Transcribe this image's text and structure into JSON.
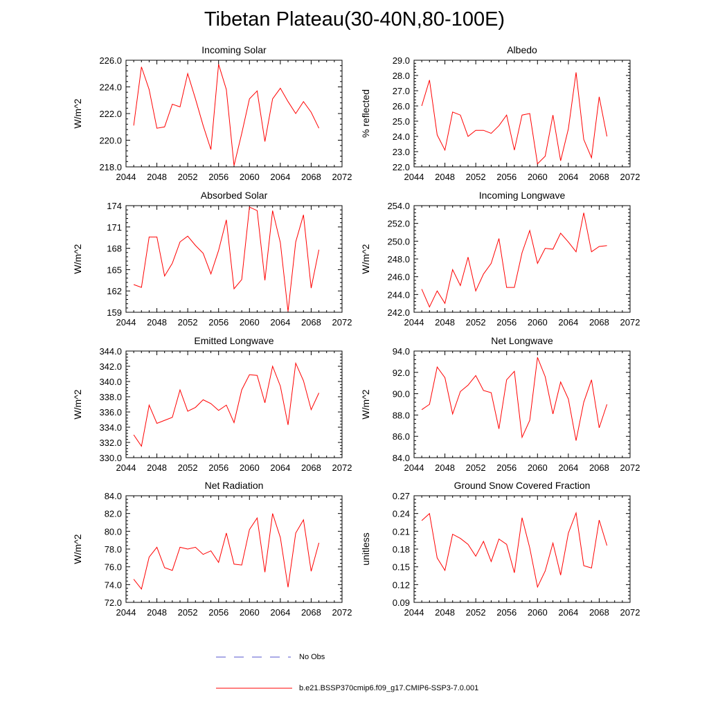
{
  "title": "Tibetan Plateau(30-40N,80-100E)",
  "colors": {
    "model": "#ff0000",
    "obs": "#5555cc",
    "axis": "#000000"
  },
  "legend": {
    "obs_label": "No Obs",
    "model_label": "b.e21.BSSP370cmip6.f09_g17.CMIP6-SSP3-7.0.001"
  },
  "chart_data": [
    {
      "type": "line",
      "title": "Incoming Solar",
      "ylabel": "W/m^2",
      "xlim": [
        2044,
        2072
      ],
      "ylim": [
        218,
        226
      ],
      "xticks": [
        2044,
        2048,
        2052,
        2056,
        2060,
        2064,
        2068,
        2072
      ],
      "yticks": [
        "218.0",
        "220.0",
        "222.0",
        "224.0",
        "226.0"
      ],
      "x": [
        2045,
        2046,
        2047,
        2048,
        2049,
        2050,
        2051,
        2052,
        2053,
        2054,
        2055,
        2056,
        2057,
        2058,
        2059,
        2060,
        2061,
        2062,
        2063,
        2064,
        2065,
        2066,
        2067,
        2068,
        2069
      ],
      "series": [
        {
          "values": [
            221.1,
            225.5,
            223.8,
            220.9,
            221.0,
            222.7,
            222.5,
            225.0,
            223.1,
            221.1,
            219.3,
            225.7,
            223.8,
            218.1,
            220.5,
            223.1,
            223.7,
            219.9,
            223.1,
            223.9,
            222.9,
            222.0,
            222.9,
            222.1,
            220.9
          ]
        }
      ]
    },
    {
      "type": "line",
      "title": "Albedo",
      "ylabel": "% reflected",
      "xlim": [
        2044,
        2072
      ],
      "ylim": [
        22,
        29
      ],
      "xticks": [
        2044,
        2048,
        2052,
        2056,
        2060,
        2064,
        2068,
        2072
      ],
      "yticks": [
        "22.0",
        "23.0",
        "24.0",
        "25.0",
        "26.0",
        "27.0",
        "28.0",
        "29.0"
      ],
      "x": [
        2045,
        2046,
        2047,
        2048,
        2049,
        2050,
        2051,
        2052,
        2053,
        2054,
        2055,
        2056,
        2057,
        2058,
        2059,
        2060,
        2061,
        2062,
        2063,
        2064,
        2065,
        2066,
        2067,
        2068,
        2069
      ],
      "series": [
        {
          "values": [
            26.0,
            27.7,
            24.1,
            23.1,
            25.6,
            25.4,
            24.0,
            24.4,
            24.4,
            24.2,
            24.7,
            25.4,
            23.1,
            25.4,
            25.5,
            22.2,
            22.7,
            25.4,
            22.4,
            24.5,
            28.2,
            23.8,
            22.6,
            26.6,
            24.0
          ]
        }
      ]
    },
    {
      "type": "line",
      "title": "Absorbed Solar",
      "ylabel": "W/m^2",
      "xlim": [
        2044,
        2072
      ],
      "ylim": [
        159,
        174
      ],
      "xticks": [
        2044,
        2048,
        2052,
        2056,
        2060,
        2064,
        2068,
        2072
      ],
      "yticks": [
        "159",
        "162",
        "165",
        "168",
        "171",
        "174"
      ],
      "x": [
        2045,
        2046,
        2047,
        2048,
        2049,
        2050,
        2051,
        2052,
        2053,
        2054,
        2055,
        2056,
        2057,
        2058,
        2059,
        2060,
        2061,
        2062,
        2063,
        2064,
        2065,
        2066,
        2067,
        2068,
        2069
      ],
      "series": [
        {
          "values": [
            162.9,
            162.5,
            169.6,
            169.6,
            164.1,
            165.9,
            168.9,
            169.7,
            168.4,
            167.3,
            164.4,
            167.7,
            172.0,
            162.3,
            163.6,
            173.8,
            173.3,
            163.5,
            173.3,
            168.8,
            159.1,
            168.9,
            172.7,
            162.4,
            167.8
          ]
        }
      ]
    },
    {
      "type": "line",
      "title": "Incoming Longwave",
      "ylabel": "W/m^2",
      "xlim": [
        2044,
        2072
      ],
      "ylim": [
        242,
        254
      ],
      "xticks": [
        2044,
        2048,
        2052,
        2056,
        2060,
        2064,
        2068,
        2072
      ],
      "yticks": [
        "242.0",
        "244.0",
        "246.0",
        "248.0",
        "250.0",
        "252.0",
        "254.0"
      ],
      "x": [
        2045,
        2046,
        2047,
        2048,
        2049,
        2050,
        2051,
        2052,
        2053,
        2054,
        2055,
        2056,
        2057,
        2058,
        2059,
        2060,
        2061,
        2062,
        2063,
        2064,
        2065,
        2066,
        2067,
        2068,
        2069
      ],
      "series": [
        {
          "values": [
            244.6,
            242.6,
            244.4,
            243.0,
            246.8,
            245.0,
            248.2,
            244.4,
            246.3,
            247.5,
            250.3,
            244.8,
            244.8,
            248.7,
            251.2,
            247.5,
            249.2,
            249.1,
            250.9,
            249.9,
            248.8,
            253.2,
            248.8,
            249.4,
            249.5
          ]
        }
      ]
    },
    {
      "type": "line",
      "title": "Emitted Longwave",
      "ylabel": "W/m^2",
      "xlim": [
        2044,
        2072
      ],
      "ylim": [
        330,
        344
      ],
      "xticks": [
        2044,
        2048,
        2052,
        2056,
        2060,
        2064,
        2068,
        2072
      ],
      "yticks": [
        "330.0",
        "332.0",
        "334.0",
        "336.0",
        "338.0",
        "340.0",
        "342.0",
        "344.0"
      ],
      "x": [
        2045,
        2046,
        2047,
        2048,
        2049,
        2050,
        2051,
        2052,
        2053,
        2054,
        2055,
        2056,
        2057,
        2058,
        2059,
        2060,
        2061,
        2062,
        2063,
        2064,
        2065,
        2066,
        2067,
        2068,
        2069
      ],
      "series": [
        {
          "values": [
            333.0,
            331.5,
            336.9,
            334.5,
            334.9,
            335.3,
            338.9,
            336.1,
            336.6,
            337.6,
            337.1,
            336.2,
            336.9,
            334.6,
            338.9,
            340.9,
            340.8,
            337.2,
            342.0,
            339.4,
            334.3,
            342.4,
            340.1,
            336.3,
            338.5
          ]
        }
      ]
    },
    {
      "type": "line",
      "title": "Net Longwave",
      "ylabel": "W/m^2",
      "xlim": [
        2044,
        2072
      ],
      "ylim": [
        84,
        94
      ],
      "xticks": [
        2044,
        2048,
        2052,
        2056,
        2060,
        2064,
        2068,
        2072
      ],
      "yticks": [
        "84.0",
        "86.0",
        "88.0",
        "90.0",
        "92.0",
        "94.0"
      ],
      "x": [
        2045,
        2046,
        2047,
        2048,
        2049,
        2050,
        2051,
        2052,
        2053,
        2054,
        2055,
        2056,
        2057,
        2058,
        2059,
        2060,
        2061,
        2062,
        2063,
        2064,
        2065,
        2066,
        2067,
        2068,
        2069
      ],
      "series": [
        {
          "values": [
            88.5,
            89.0,
            92.5,
            91.5,
            88.1,
            90.2,
            90.8,
            91.7,
            90.3,
            90.1,
            86.7,
            91.3,
            92.1,
            85.9,
            87.5,
            93.4,
            91.6,
            88.1,
            91.1,
            89.5,
            85.6,
            89.2,
            91.3,
            86.8,
            89.0
          ]
        }
      ]
    },
    {
      "type": "line",
      "title": "Net Radiation",
      "ylabel": "W/m^2",
      "xlim": [
        2044,
        2072
      ],
      "ylim": [
        72,
        84
      ],
      "xticks": [
        2044,
        2048,
        2052,
        2056,
        2060,
        2064,
        2068,
        2072
      ],
      "yticks": [
        "72.0",
        "74.0",
        "76.0",
        "78.0",
        "80.0",
        "82.0",
        "84.0"
      ],
      "x": [
        2045,
        2046,
        2047,
        2048,
        2049,
        2050,
        2051,
        2052,
        2053,
        2054,
        2055,
        2056,
        2057,
        2058,
        2059,
        2060,
        2061,
        2062,
        2063,
        2064,
        2065,
        2066,
        2067,
        2068,
        2069
      ],
      "series": [
        {
          "values": [
            74.6,
            73.5,
            77.1,
            78.2,
            75.9,
            75.6,
            78.2,
            78.0,
            78.2,
            77.4,
            77.8,
            76.5,
            79.8,
            76.3,
            76.2,
            80.2,
            81.5,
            75.4,
            82.0,
            79.3,
            73.7,
            79.8,
            81.3,
            75.5,
            78.7
          ]
        }
      ]
    },
    {
      "type": "line",
      "title": "Ground Snow Covered Fraction",
      "ylabel": "unitless",
      "xlim": [
        2044,
        2072
      ],
      "ylim": [
        0.09,
        0.27
      ],
      "xticks": [
        2044,
        2048,
        2052,
        2056,
        2060,
        2064,
        2068,
        2072
      ],
      "yticks": [
        "0.09",
        "0.12",
        "0.15",
        "0.18",
        "0.21",
        "0.24",
        "0.27"
      ],
      "x": [
        2045,
        2046,
        2047,
        2048,
        2049,
        2050,
        2051,
        2052,
        2053,
        2054,
        2055,
        2056,
        2057,
        2058,
        2059,
        2060,
        2061,
        2062,
        2063,
        2064,
        2065,
        2066,
        2067,
        2068,
        2069
      ],
      "series": [
        {
          "values": [
            0.228,
            0.24,
            0.165,
            0.144,
            0.205,
            0.198,
            0.188,
            0.168,
            0.193,
            0.159,
            0.197,
            0.188,
            0.14,
            0.233,
            0.182,
            0.116,
            0.143,
            0.19,
            0.136,
            0.207,
            0.241,
            0.152,
            0.148,
            0.229,
            0.186
          ]
        }
      ]
    }
  ]
}
